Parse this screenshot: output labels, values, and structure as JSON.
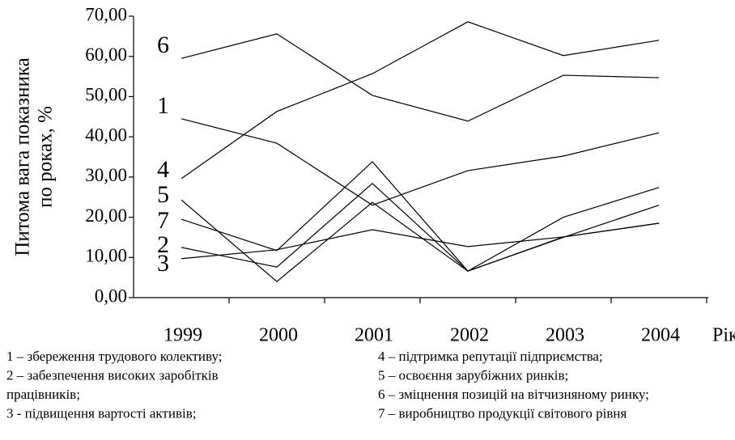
{
  "chart_data": {
    "type": "line",
    "ylabel": [
      "Питома вага показника",
      "по роках, %"
    ],
    "xlabel": "Рік",
    "categories": [
      "1999",
      "2000",
      "2001",
      "2002",
      "2003",
      "2004"
    ],
    "series": [
      {
        "name": "6",
        "color": "#000000",
        "values": [
          59.5,
          65.6,
          50.3,
          43.9,
          55.3,
          54.7
        ]
      },
      {
        "name": "1",
        "color": "#000000",
        "values": [
          44.5,
          38.4,
          23.0,
          31.6,
          35.2,
          41.0
        ]
      },
      {
        "name": "4",
        "color": "#000000",
        "values": [
          29.6,
          46.3,
          55.7,
          68.6,
          60.2,
          64.0
        ]
      },
      {
        "name": "5",
        "color": "#000000",
        "values": [
          24.3,
          4.0,
          23.7,
          6.6,
          20.0,
          27.4
        ]
      },
      {
        "name": "7",
        "color": "#000000",
        "values": [
          19.5,
          11.7,
          33.8,
          6.6,
          15.0,
          23.0
        ]
      },
      {
        "name": "2",
        "color": "#000000",
        "values": [
          12.5,
          7.6,
          28.4,
          6.6,
          15.1,
          18.5
        ]
      },
      {
        "name": "3",
        "color": "#000000",
        "values": [
          9.7,
          11.9,
          16.9,
          12.7,
          15.1,
          18.5
        ]
      }
    ],
    "ylim": [
      0,
      70
    ],
    "yticks": [
      {
        "value": 0,
        "label": "0,00"
      },
      {
        "value": 10,
        "label": "10,00"
      },
      {
        "value": 20,
        "label": "20,00"
      },
      {
        "value": 30,
        "label": "30,00"
      },
      {
        "value": 40,
        "label": "40,00"
      },
      {
        "value": 50,
        "label": "50,00"
      },
      {
        "value": 60,
        "label": "60,00"
      },
      {
        "value": 70,
        "label": "70,00"
      }
    ],
    "legend_left": [
      "1 – збереження трудового колективу;",
      "2 – забезпечення високих заробітків",
      "працівників;",
      "3 - підвищення  вартості активів;"
    ],
    "legend_right": [
      "4 – підтримка репутації підприємства;",
      "5 – освоєння зарубіжних ринків;",
      "6 – зміцнення позицій на вітчизняному ринку;",
      "7 – виробництво продукції світового рівня"
    ]
  }
}
